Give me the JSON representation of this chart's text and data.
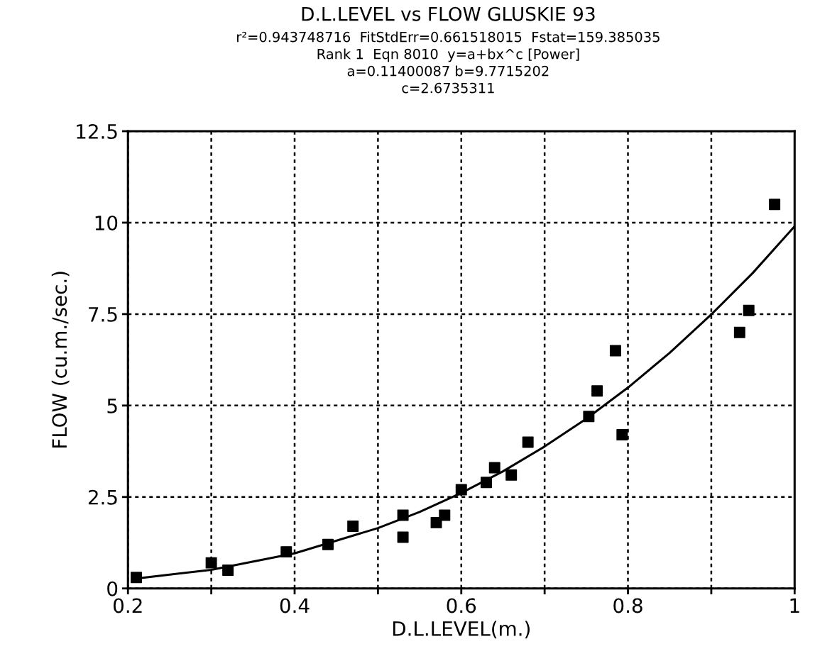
{
  "chart_data": {
    "type": "scatter",
    "title": "D.L.LEVEL vs FLOW GLUSKIE 93",
    "subtitle": "r²=0.943748716  FitStdErr=0.661518015  Fstat=159.385035\nRank 1  Eqn 8010  y=a+bx^c [Power]\na=0.11400087 b=9.7715202\nc=2.6735311",
    "xlabel": "D.L.LEVEL(m.)",
    "ylabel": "FLOW (cu.m./sec.)",
    "series": [
      {
        "color": "#000000",
        "marker": "square",
        "x": [
          0.21,
          0.3,
          0.32,
          0.39,
          0.44,
          0.47,
          0.53,
          0.53,
          0.57,
          0.58,
          0.6,
          0.63,
          0.64,
          0.66,
          0.68,
          0.753,
          0.763,
          0.785,
          0.793,
          0.934,
          0.945,
          0.976
        ],
        "values": [
          0.3,
          0.7,
          0.5,
          1.0,
          1.2,
          1.7,
          2.0,
          1.4,
          1.8,
          2.0,
          2.7,
          2.9,
          3.3,
          3.1,
          4.0,
          4.7,
          5.4,
          6.5,
          4.2,
          7.0,
          7.6,
          10.5
        ]
      },
      {
        "type": "line",
        "color": "#000000",
        "marker": "none",
        "line_style": "solid",
        "x": [
          0.21,
          0.3,
          0.4,
          0.5,
          0.55,
          0.6,
          0.65,
          0.7,
          0.75,
          0.8,
          0.85,
          0.9,
          0.95,
          1.0
        ],
        "values": [
          0.27,
          0.51,
          0.96,
          1.65,
          2.09,
          2.61,
          3.2,
          3.88,
          4.64,
          5.49,
          6.44,
          7.49,
          8.63,
          9.9
        ]
      }
    ],
    "xlim": [
      0.2,
      1
    ],
    "ylim": [
      0,
      12.5
    ],
    "xticks": [
      0.2,
      {
        "value": 0.3,
        "label": null
      },
      0.4,
      {
        "value": 0.5,
        "label": null
      },
      0.6,
      {
        "value": 0.7,
        "label": null
      },
      0.8,
      {
        "value": 0.9,
        "label": null
      },
      1
    ],
    "yticks": [
      0,
      2.5,
      5,
      7.5,
      10,
      12.5
    ],
    "grid": true,
    "legend": false
  }
}
